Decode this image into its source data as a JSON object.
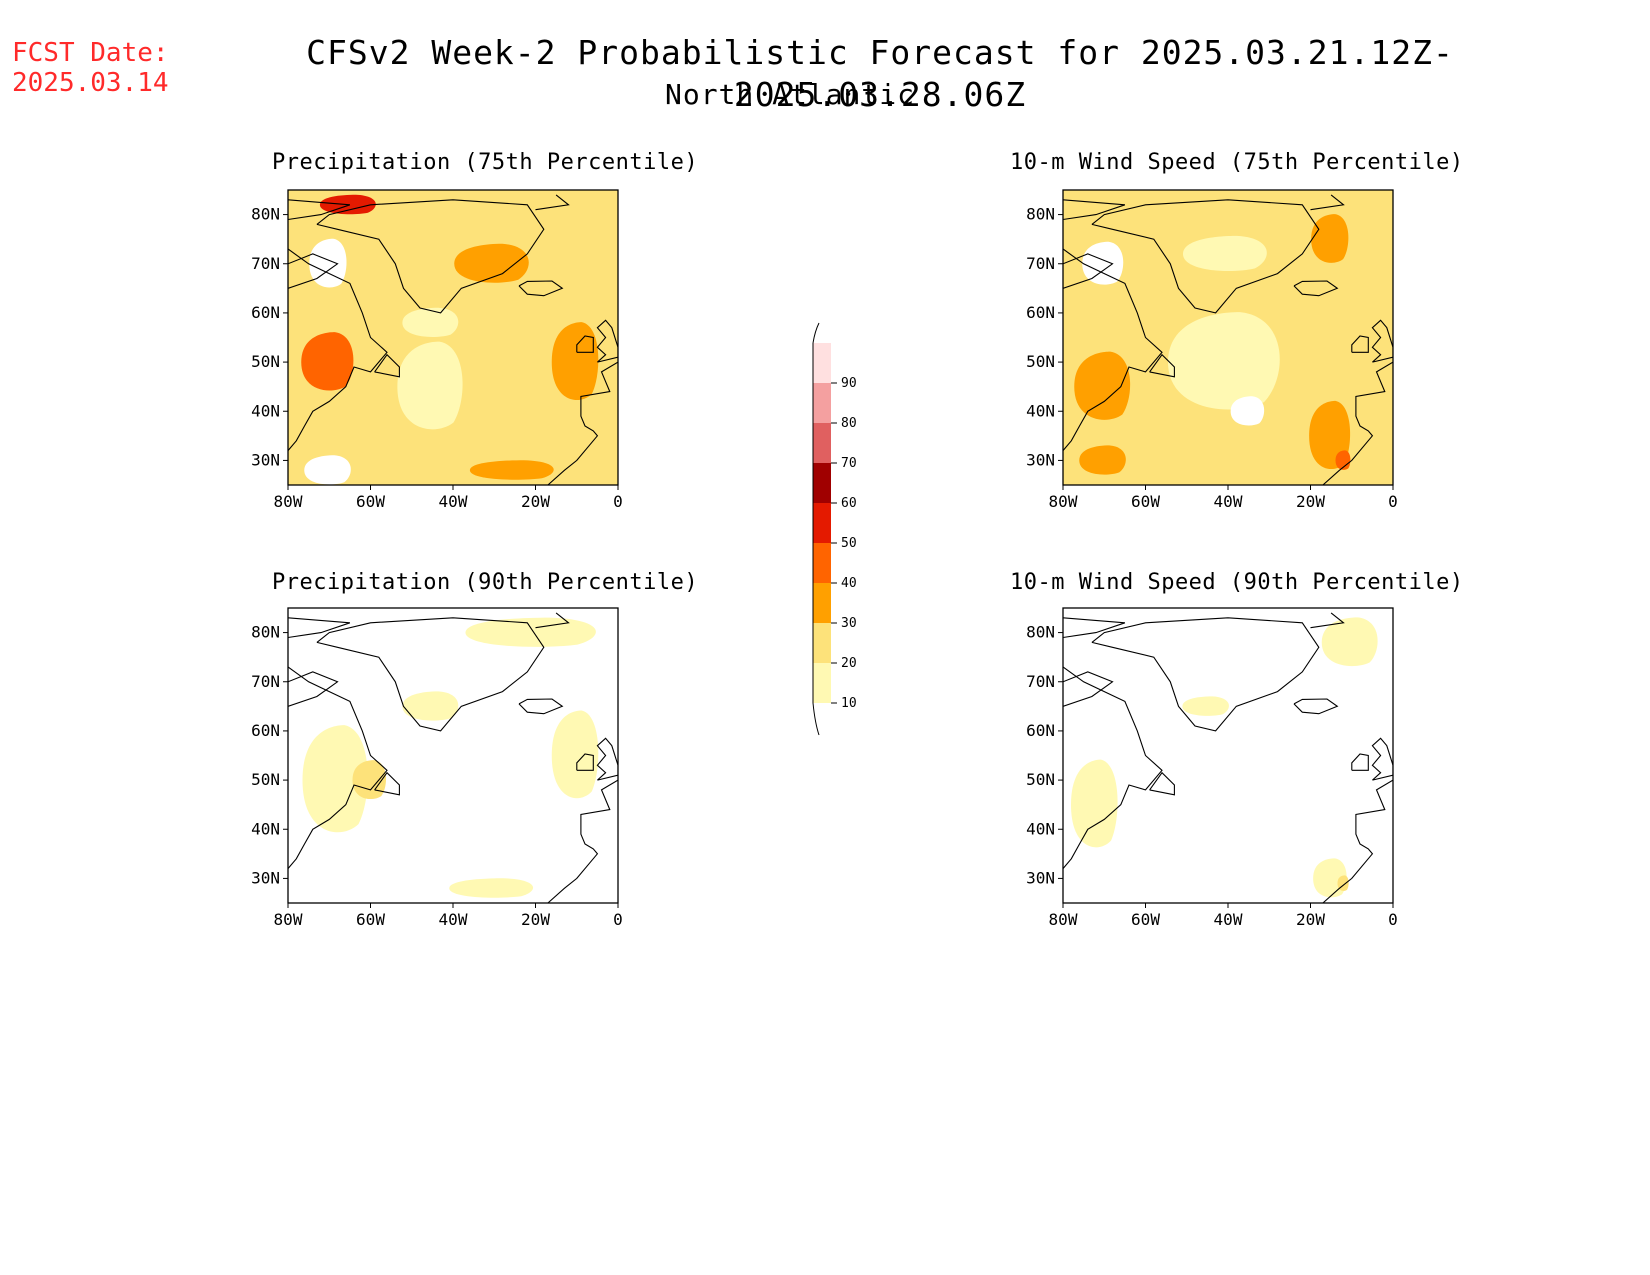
{
  "header": {
    "fcst_label": "FCST Date:",
    "fcst_date": "2025.03.14",
    "title": "CFSv2 Week-2 Probabilistic Forecast for 2025.03.21.12Z-2025.03.28.06Z",
    "subtitle": "North Atlantic"
  },
  "axes": {
    "lat_labels": [
      "80N",
      "70N",
      "60N",
      "50N",
      "40N",
      "30N"
    ],
    "lon_labels": [
      "80W",
      "60W",
      "40W",
      "20W",
      "0"
    ]
  },
  "panels": [
    {
      "id": "precip75",
      "title": "Precipitation (75th Percentile)",
      "level": "high"
    },
    {
      "id": "wind75",
      "title": "10-m Wind Speed (75th Percentile)",
      "level": "high"
    },
    {
      "id": "precip90",
      "title": "Precipitation (90th Percentile)",
      "level": "low"
    },
    {
      "id": "wind90",
      "title": "10-m Wind Speed (90th Percentile)",
      "level": "low"
    }
  ],
  "colorbar": {
    "levels": [
      "10",
      "20",
      "30",
      "40",
      "50",
      "60",
      "70",
      "80",
      "90"
    ],
    "colors": [
      "#fff9b3",
      "#fde27a",
      "#ffa000",
      "#ff6400",
      "#e41a00",
      "#a00000",
      "#e06060",
      "#f4a0a0",
      "#ffe0e0"
    ]
  }
}
